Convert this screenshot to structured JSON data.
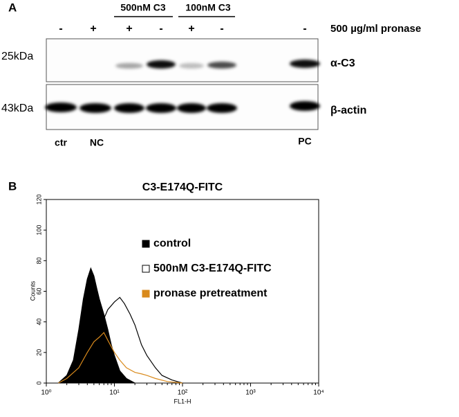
{
  "panel_a": {
    "label": "A",
    "groups": [
      "500nM C3",
      "100nM C3"
    ],
    "pronase_signs": [
      "-",
      "+",
      "+",
      "-",
      "+",
      "-",
      "-"
    ],
    "pronase_label": "500 µg/ml pronase",
    "markers": [
      "25kDa",
      "43kDa"
    ],
    "blots": [
      "α-C3",
      "β-actin"
    ],
    "lanes": [
      "ctr",
      "NC",
      "PC"
    ]
  },
  "chart_data": {
    "type": "histogram-overlay",
    "panel_label": "B",
    "title": "C3-E174Q-FITC",
    "xlabel": "FL1-H",
    "ylabel": "Counts",
    "xscale": "log",
    "xlim": [
      1,
      10000
    ],
    "xticks": [
      {
        "value": 1,
        "label": "10⁰"
      },
      {
        "value": 10,
        "label": "10¹"
      },
      {
        "value": 100,
        "label": "10²"
      },
      {
        "value": 1000,
        "label": "10³"
      },
      {
        "value": 10000,
        "label": "10⁴"
      }
    ],
    "ylim": [
      0,
      120
    ],
    "yticks": [
      0,
      20,
      40,
      60,
      80,
      100,
      120
    ],
    "series": [
      {
        "name": "control",
        "color": "#000000",
        "filled": true,
        "x": [
          1.5,
          2,
          2.5,
          3,
          3.5,
          4,
          4.5,
          5,
          5.5,
          6,
          7,
          8,
          9,
          10,
          12,
          15,
          20
        ],
        "values": [
          0,
          5,
          15,
          35,
          55,
          68,
          75,
          70,
          62,
          55,
          45,
          35,
          25,
          18,
          8,
          3,
          0
        ]
      },
      {
        "name": "500nM C3-E174Q-FITC",
        "color": "#000000",
        "filled": false,
        "x": [
          2,
          3,
          4,
          5,
          6,
          7,
          8,
          10,
          12,
          14,
          17,
          20,
          25,
          30,
          40,
          50,
          70,
          100
        ],
        "values": [
          0,
          5,
          15,
          25,
          35,
          42,
          48,
          53,
          56,
          52,
          45,
          38,
          25,
          18,
          10,
          5,
          2,
          0
        ]
      },
      {
        "name": "pronase pretreatment",
        "color": "#d98a1c",
        "filled": false,
        "x": [
          1.5,
          2,
          3,
          4,
          5,
          6,
          7,
          8,
          10,
          12,
          15,
          20,
          25,
          30,
          40,
          60,
          100
        ],
        "values": [
          0,
          3,
          10,
          20,
          27,
          30,
          33,
          28,
          20,
          15,
          10,
          7,
          6,
          5,
          3,
          1,
          0
        ]
      }
    ]
  }
}
